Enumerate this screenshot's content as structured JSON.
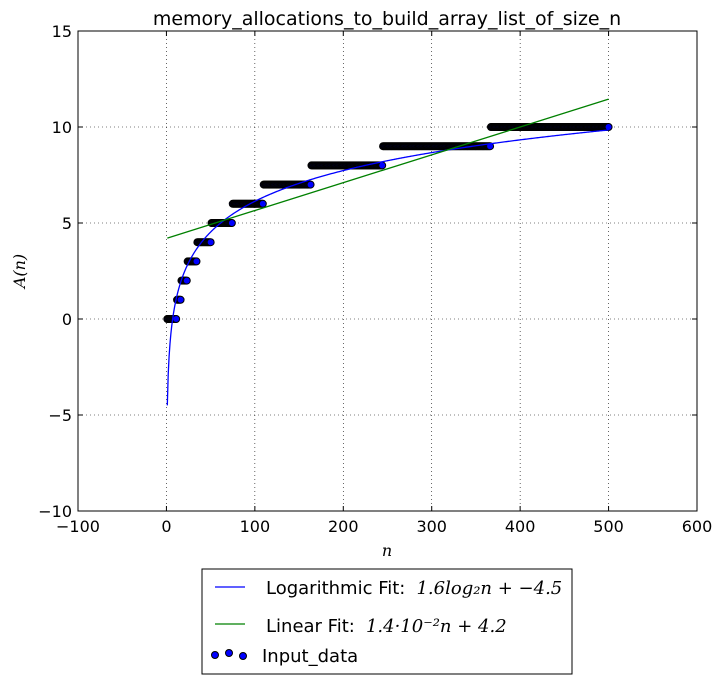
{
  "chart_data": {
    "type": "scatter",
    "title": "memory_allocations_to_build_array_list_of_size_n",
    "xlabel": "n",
    "ylabel": "A(n)",
    "xlim": [
      -100,
      600
    ],
    "ylim": [
      -10,
      15
    ],
    "xticks": [
      "−100",
      "0",
      "100",
      "200",
      "300",
      "400",
      "500",
      "600"
    ],
    "yticks": [
      "15",
      "10",
      "5",
      "0",
      "−5",
      "−10"
    ],
    "grid": true,
    "legend_position": "bottom-center",
    "input_data": {
      "name": "Input_data",
      "color": "#0000ff",
      "step_ranges": [
        {
          "y": 0,
          "x_start": 1,
          "x_end": 11
        },
        {
          "y": 1,
          "x_start": 12,
          "x_end": 16
        },
        {
          "y": 2,
          "x_start": 17,
          "x_end": 23
        },
        {
          "y": 3,
          "x_start": 24,
          "x_end": 34
        },
        {
          "y": 4,
          "x_start": 35,
          "x_end": 50
        },
        {
          "y": 5,
          "x_start": 51,
          "x_end": 74
        },
        {
          "y": 6,
          "x_start": 75,
          "x_end": 109
        },
        {
          "y": 7,
          "x_start": 110,
          "x_end": 163
        },
        {
          "y": 8,
          "x_start": 164,
          "x_end": 244
        },
        {
          "y": 9,
          "x_start": 245,
          "x_end": 366
        },
        {
          "y": 10,
          "x_start": 367,
          "x_end": 500
        }
      ]
    },
    "log_fit": {
      "name": "Logarithmic Fit:",
      "formula": "1.6log₂n + −4.5",
      "a": 1.6,
      "b": -4.5,
      "x_range": [
        1,
        500
      ],
      "color": "#0000ff"
    },
    "linear_fit": {
      "name": "Linear Fit:",
      "formula": "1.4·10⁻²n + 4.2",
      "slope": 0.0145,
      "intercept": 4.2,
      "x_range": [
        1,
        500
      ],
      "color": "#008000"
    }
  }
}
